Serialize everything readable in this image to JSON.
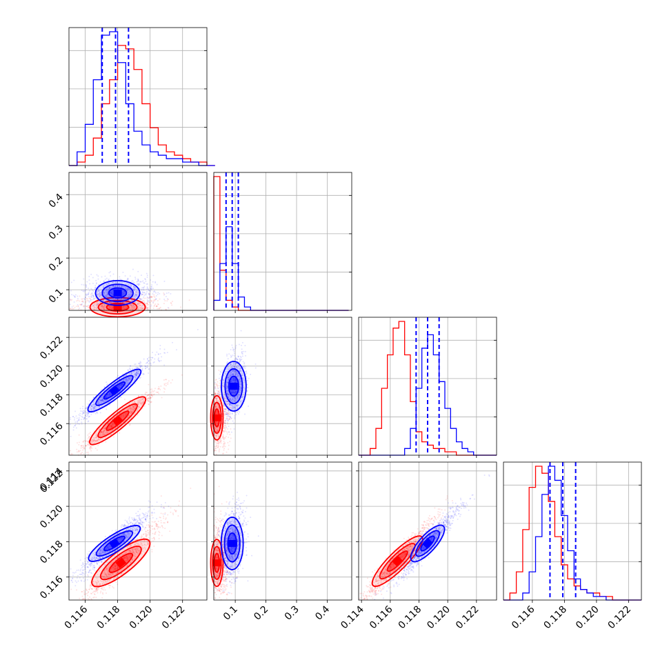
{
  "colors": {
    "red": "#ff0000",
    "blue": "#0000ff",
    "grid": "#b0b0b0"
  },
  "chart_data": [
    {
      "type": "histogram",
      "panel": "param1-marginal",
      "xlim": [
        0.115,
        0.1235
      ],
      "bin_width": 0.0005,
      "series": [
        {
          "color": "red",
          "values": [
            0,
            1,
            3,
            8,
            18,
            25,
            35,
            34,
            28,
            18,
            11,
            6,
            4,
            3,
            2,
            1,
            1,
            0,
            0
          ]
        },
        {
          "color": "blue",
          "values": [
            0,
            4,
            12,
            25,
            38,
            39,
            30,
            18,
            10,
            6,
            4,
            3,
            2,
            2,
            1,
            1,
            0,
            0,
            0
          ]
        }
      ],
      "quantiles_blue": [
        0.11705,
        0.11787,
        0.11867
      ],
      "grid": true
    },
    {
      "type": "scatter",
      "panel": "param2-vs-param1",
      "xlim": [
        0.115,
        0.1235
      ],
      "ylim": [
        0.035,
        0.47
      ],
      "yticks": [
        "0.1",
        "0.2",
        "0.3",
        "0.4"
      ],
      "red_center": [
        0.118,
        0.045
      ],
      "blue_center": [
        0.118,
        0.09
      ],
      "grid": true
    },
    {
      "type": "histogram",
      "panel": "param2-marginal",
      "xlim": [
        0.03,
        0.48
      ],
      "bin_width": 0.02,
      "series": [
        {
          "color": "red",
          "values": [
            40,
            12,
            3,
            1,
            0,
            0,
            0,
            0,
            0,
            0,
            0,
            0,
            0,
            0,
            0,
            0,
            0,
            0,
            0,
            0,
            0,
            0
          ]
        },
        {
          "color": "blue",
          "values": [
            3,
            14,
            25,
            14,
            4,
            1,
            0,
            0,
            0,
            0,
            0,
            0,
            0,
            0,
            0,
            0,
            0,
            0,
            0,
            0,
            0,
            0
          ]
        }
      ],
      "quantiles_blue": [
        0.07,
        0.09,
        0.11
      ],
      "grid": true
    },
    {
      "type": "scatter",
      "panel": "param3-vs-param1",
      "xlim": [
        0.115,
        0.1235
      ],
      "ylim": [
        0.1138,
        0.1234
      ],
      "yticks": [
        "0.116",
        "0.118",
        "0.120",
        "0.122"
      ],
      "red_center": [
        0.118,
        0.1162
      ],
      "blue_center": [
        0.1178,
        0.1183
      ],
      "grid": true
    },
    {
      "type": "scatter",
      "panel": "param3-vs-param2",
      "xlim": [
        0.03,
        0.48
      ],
      "ylim": [
        0.1138,
        0.1234
      ],
      "red_center": [
        0.04,
        0.1164
      ],
      "blue_center": [
        0.095,
        0.1186
      ],
      "grid": true
    },
    {
      "type": "histogram",
      "panel": "param3-marginal",
      "xlim": [
        0.1138,
        0.1234
      ],
      "bin_width": 0.0004,
      "series": [
        {
          "color": "red",
          "values": [
            0,
            0,
            2,
            8,
            20,
            30,
            38,
            40,
            30,
            16,
            7,
            4,
            3,
            2,
            2,
            1,
            1,
            0,
            0,
            0,
            0,
            0,
            0,
            0
          ]
        },
        {
          "color": "blue",
          "values": [
            0,
            0,
            0,
            0,
            0,
            0,
            0,
            0,
            2,
            8,
            20,
            32,
            36,
            30,
            22,
            14,
            8,
            4,
            2,
            1,
            0,
            0,
            0,
            0
          ]
        }
      ],
      "quantiles_blue": [
        0.1178,
        0.1186,
        0.1194
      ],
      "grid": true
    },
    {
      "type": "scatter",
      "panel": "param4-vs-param1",
      "xlim": [
        0.115,
        0.1235
      ],
      "ylim": [
        0.1147,
        0.1225
      ],
      "yticks": [
        "0.116",
        "0.118",
        "0.120",
        "0.122"
      ],
      "red_center": [
        0.1182,
        0.1168
      ],
      "blue_center": [
        0.1178,
        0.1179
      ],
      "grid": true
    },
    {
      "type": "scatter",
      "panel": "param4-vs-param2",
      "xlim": [
        0.03,
        0.48
      ],
      "ylim": [
        0.1147,
        0.1225
      ],
      "red_center": [
        0.04,
        0.1168
      ],
      "blue_center": [
        0.09,
        0.1179
      ],
      "grid": true
    },
    {
      "type": "scatter",
      "panel": "param4-vs-param3",
      "xlim": [
        0.1138,
        0.1234
      ],
      "ylim": [
        0.1147,
        0.1225
      ],
      "red_center": [
        0.1165,
        0.1169
      ],
      "blue_center": [
        0.1186,
        0.1179
      ],
      "grid": true
    },
    {
      "type": "histogram",
      "panel": "param4-marginal",
      "xlim": [
        0.1142,
        0.1228
      ],
      "bin_width": 0.0004,
      "series": [
        {
          "color": "red",
          "values": [
            0,
            2,
            8,
            20,
            32,
            38,
            36,
            28,
            18,
            10,
            6,
            4,
            3,
            2,
            2,
            1,
            1,
            0,
            0,
            0,
            0,
            0
          ]
        },
        {
          "color": "blue",
          "values": [
            0,
            0,
            0,
            2,
            8,
            18,
            30,
            38,
            34,
            24,
            14,
            6,
            3,
            2,
            1,
            1,
            0,
            0,
            0,
            0,
            0,
            0
          ]
        }
      ],
      "quantiles_blue": [
        0.1171,
        0.1179,
        0.1187
      ],
      "grid": true
    }
  ],
  "axes": {
    "bottom_x_ticks": [
      [
        "0.116",
        "0.118",
        "0.120",
        "0.122"
      ],
      [
        "0.1",
        "0.2",
        "0.3",
        "0.4"
      ],
      [
        "0.114",
        "0.116",
        "0.118",
        "0.120",
        "0.122"
      ],
      [
        "0.116",
        "0.118",
        "0.120",
        "0.122"
      ]
    ],
    "row4_top_label": "0.114"
  }
}
